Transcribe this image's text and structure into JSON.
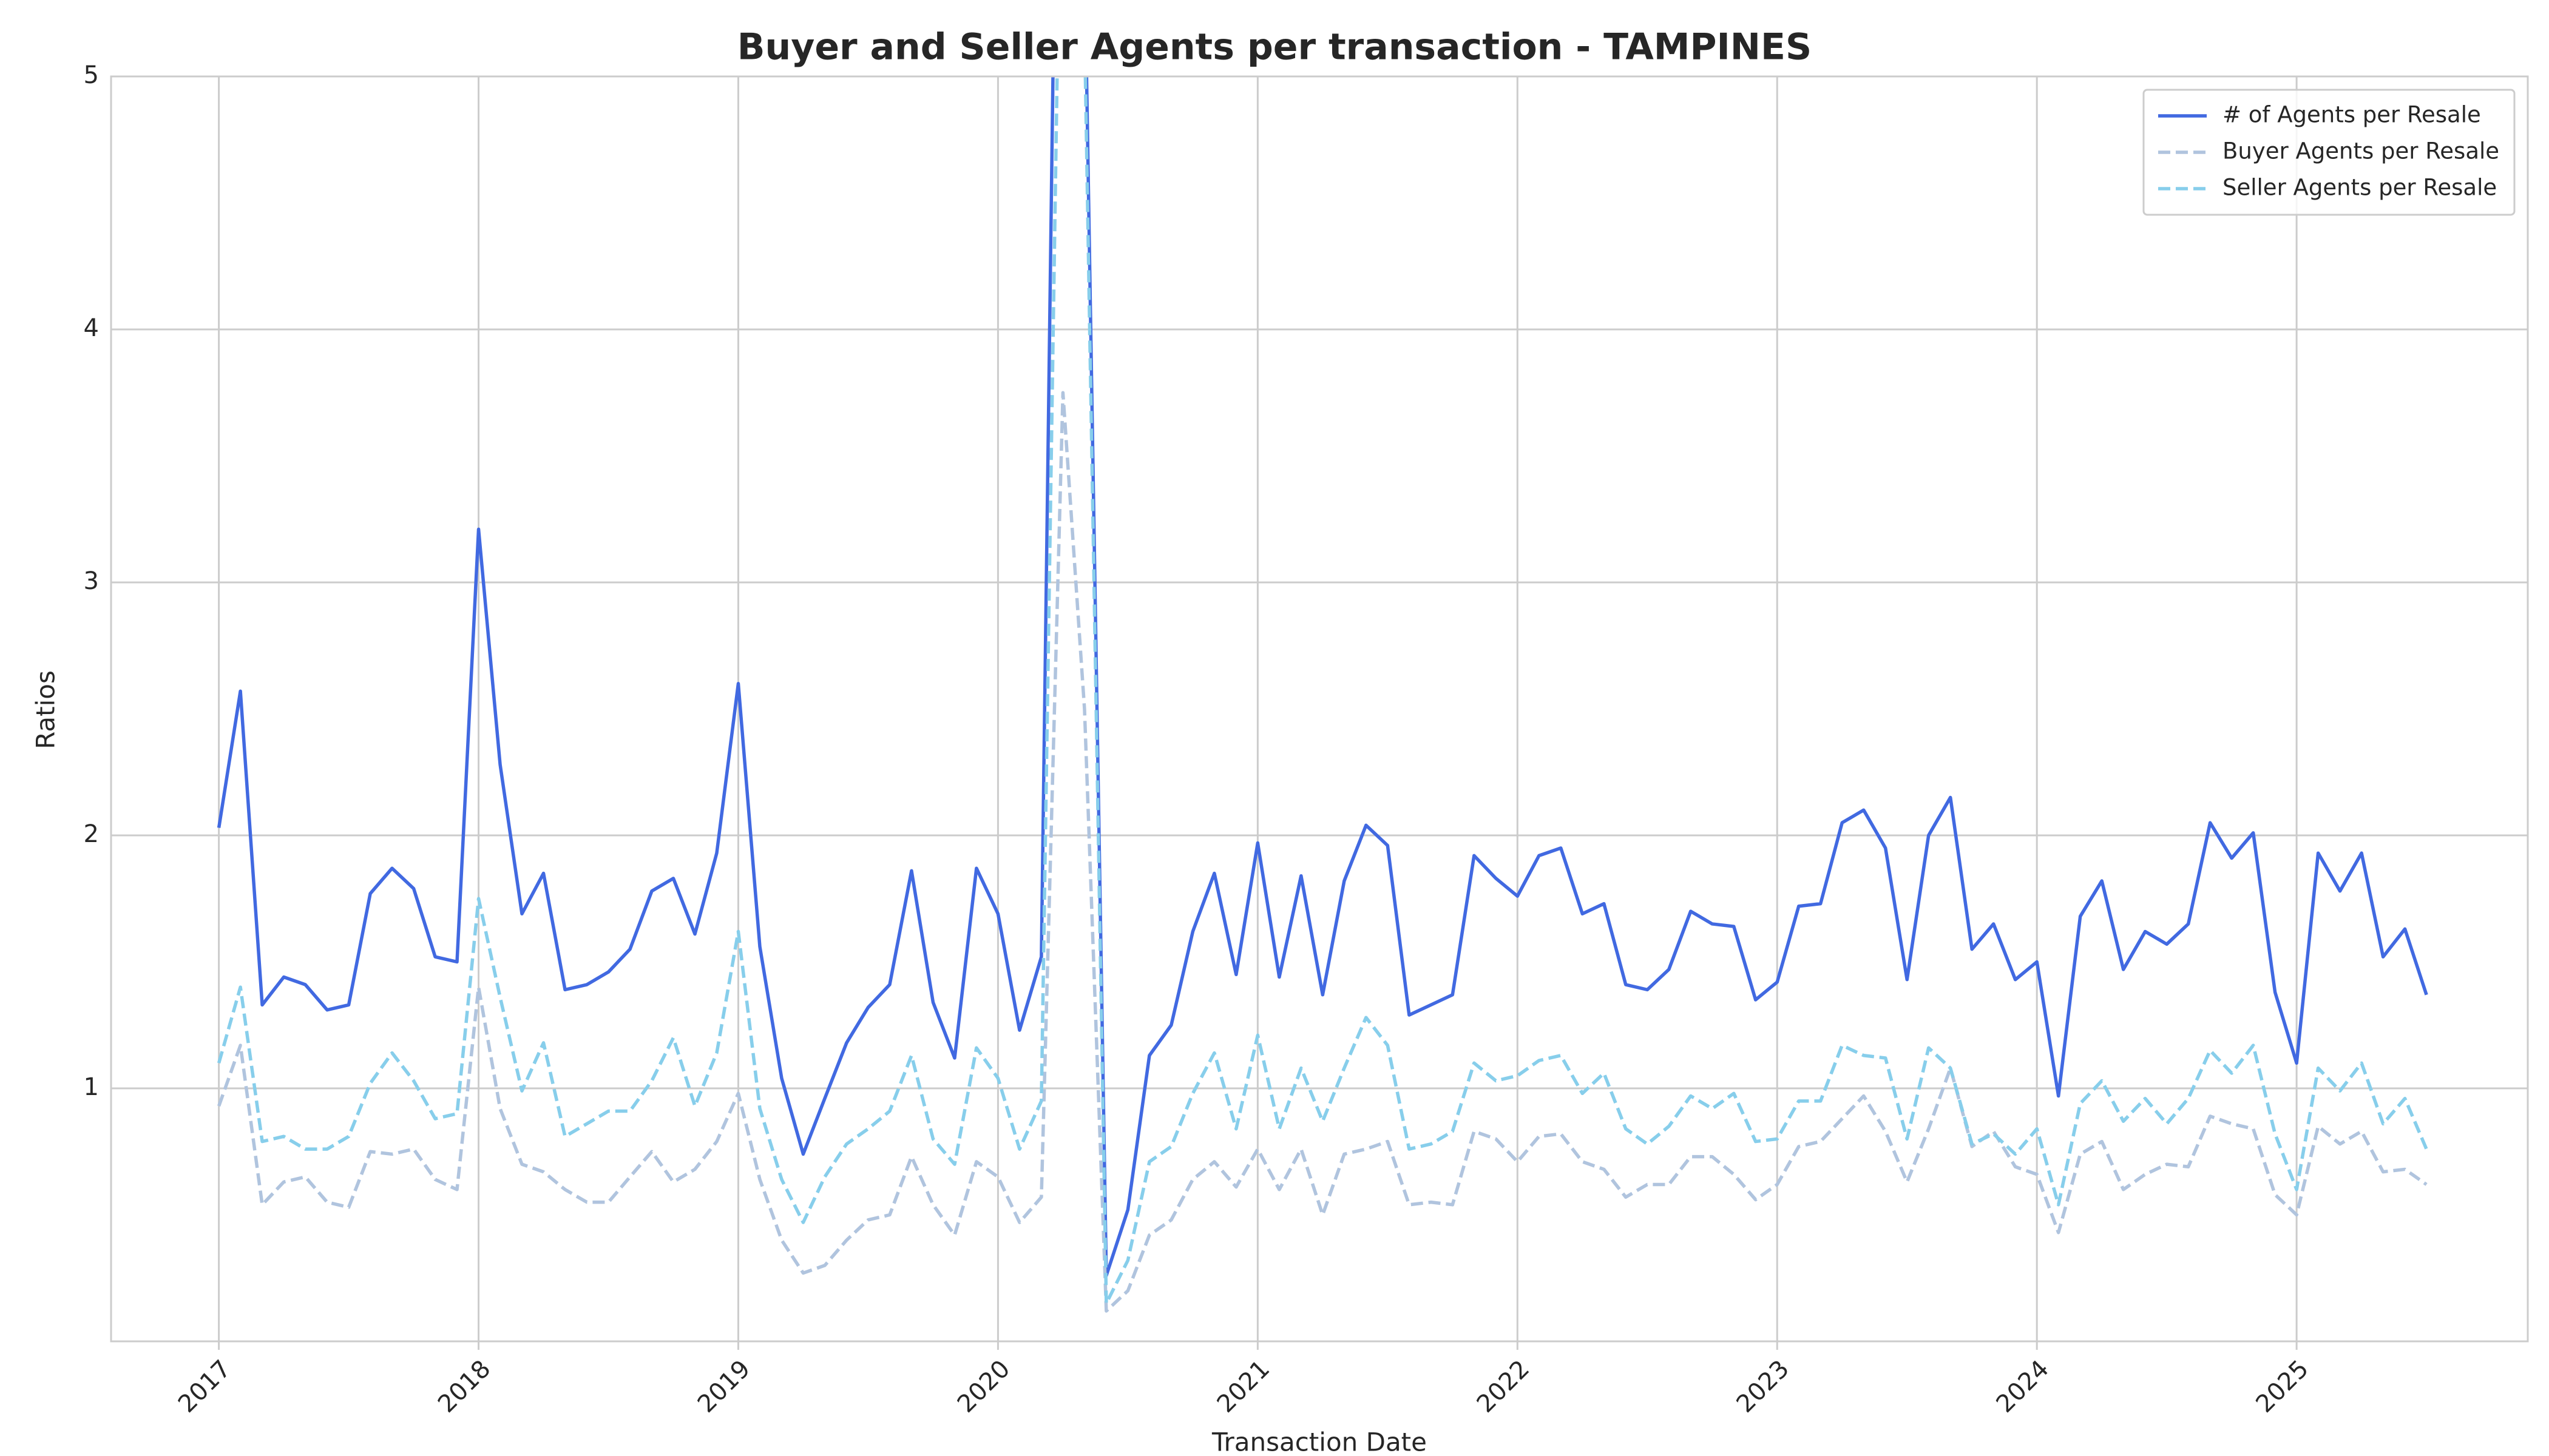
{
  "chart_data": {
    "type": "line",
    "title": "Buyer and Seller Agents per transaction - TAMPINES",
    "x_label": "Transaction Date",
    "y_label": "Ratios",
    "x": [
      2017,
      2017.083,
      2017.167,
      2017.25,
      2017.333,
      2017.417,
      2017.5,
      2017.583,
      2017.667,
      2017.75,
      2017.833,
      2017.917,
      2018,
      2018.083,
      2018.167,
      2018.25,
      2018.333,
      2018.417,
      2018.5,
      2018.583,
      2018.667,
      2018.75,
      2018.833,
      2018.917,
      2019,
      2019.083,
      2019.167,
      2019.25,
      2019.333,
      2019.417,
      2019.5,
      2019.583,
      2019.667,
      2019.75,
      2019.833,
      2019.917,
      2020,
      2020.083,
      2020.167,
      2020.25,
      2020.333,
      2020.417,
      2020.5,
      2020.583,
      2020.667,
      2020.75,
      2020.833,
      2020.917,
      2021,
      2021.083,
      2021.167,
      2021.25,
      2021.333,
      2021.417,
      2021.5,
      2021.583,
      2021.667,
      2021.75,
      2021.833,
      2021.917,
      2022,
      2022.083,
      2022.167,
      2022.25,
      2022.333,
      2022.417,
      2022.5,
      2022.583,
      2022.667,
      2022.75,
      2022.833,
      2022.917,
      2023,
      2023.083,
      2023.167,
      2023.25,
      2023.333,
      2023.417,
      2023.5,
      2023.583,
      2023.667,
      2023.75,
      2023.833,
      2023.917,
      2024,
      2024.083,
      2024.167,
      2024.25,
      2024.333,
      2024.417,
      2024.5,
      2024.583,
      2024.667,
      2024.75,
      2024.833,
      2024.917,
      2025,
      2025.083,
      2025.167,
      2025.25,
      2025.333,
      2025.417,
      2025.5
    ],
    "series": [
      {
        "name": "# of Agents per Resale",
        "color": "#4169e1",
        "linestyle": "solid",
        "values": [
          2.03,
          2.57,
          1.33,
          1.44,
          1.41,
          1.31,
          1.33,
          1.77,
          1.87,
          1.79,
          1.52,
          1.5,
          3.21,
          2.28,
          1.69,
          1.85,
          1.39,
          1.41,
          1.46,
          1.55,
          1.78,
          1.83,
          1.61,
          1.93,
          2.6,
          1.56,
          1.04,
          0.74,
          0.96,
          1.18,
          1.32,
          1.41,
          1.86,
          1.34,
          1.12,
          1.87,
          1.69,
          1.23,
          1.52,
          8,
          5.5,
          0.26,
          0.52,
          1.13,
          1.25,
          1.62,
          1.85,
          1.45,
          1.97,
          1.44,
          1.84,
          1.37,
          1.82,
          2.04,
          1.96,
          1.29,
          1.33,
          1.37,
          1.92,
          1.83,
          1.76,
          1.92,
          1.95,
          1.69,
          1.73,
          1.41,
          1.39,
          1.47,
          1.7,
          1.65,
          1.64,
          1.35,
          1.42,
          1.72,
          1.73,
          2.05,
          2.1,
          1.95,
          1.43,
          2,
          2.15,
          1.55,
          1.65,
          1.43,
          1.5,
          0.97,
          1.68,
          1.82,
          1.47,
          1.62,
          1.57,
          1.65,
          2.05,
          1.91,
          2.01,
          1.38,
          1.1,
          1.93,
          1.78,
          1.93,
          1.52,
          1.63,
          1.37
        ]
      },
      {
        "name": "Buyer Agents per Resale",
        "color": "#b0c4de",
        "linestyle": "dashed",
        "values": [
          0.93,
          1.17,
          0.54,
          0.63,
          0.65,
          0.55,
          0.53,
          0.75,
          0.74,
          0.76,
          0.64,
          0.6,
          1.4,
          0.92,
          0.7,
          0.67,
          0.6,
          0.55,
          0.55,
          0.65,
          0.75,
          0.63,
          0.68,
          0.79,
          0.98,
          0.64,
          0.4,
          0.27,
          0.3,
          0.4,
          0.48,
          0.5,
          0.73,
          0.54,
          0.42,
          0.71,
          0.65,
          0.47,
          0.57,
          3.75,
          2.5,
          0.12,
          0.2,
          0.42,
          0.48,
          0.64,
          0.71,
          0.61,
          0.76,
          0.6,
          0.76,
          0.5,
          0.74,
          0.76,
          0.79,
          0.54,
          0.55,
          0.54,
          0.83,
          0.8,
          0.71,
          0.81,
          0.82,
          0.71,
          0.68,
          0.57,
          0.62,
          0.62,
          0.73,
          0.73,
          0.66,
          0.56,
          0.62,
          0.77,
          0.79,
          0.88,
          0.97,
          0.83,
          0.63,
          0.84,
          1.08,
          0.77,
          0.83,
          0.69,
          0.66,
          0.43,
          0.74,
          0.79,
          0.6,
          0.66,
          0.7,
          0.69,
          0.89,
          0.86,
          0.84,
          0.58,
          0.5,
          0.85,
          0.78,
          0.83,
          0.67,
          0.68,
          0.62
        ]
      },
      {
        "name": "Seller Agents per Resale",
        "color": "#87ceeb",
        "linestyle": "dashed",
        "values": [
          1.1,
          1.4,
          0.79,
          0.81,
          0.76,
          0.76,
          0.81,
          1.02,
          1.14,
          1.03,
          0.88,
          0.9,
          1.75,
          1.36,
          0.99,
          1.18,
          0.81,
          0.86,
          0.91,
          0.91,
          1.03,
          1.2,
          0.93,
          1.14,
          1.62,
          0.92,
          0.64,
          0.47,
          0.65,
          0.78,
          0.84,
          0.91,
          1.13,
          0.8,
          0.7,
          1.16,
          1.04,
          0.76,
          0.95,
          6.5,
          5.2,
          0.15,
          0.32,
          0.71,
          0.77,
          0.98,
          1.14,
          0.84,
          1.21,
          0.84,
          1.08,
          0.87,
          1.08,
          1.28,
          1.17,
          0.76,
          0.78,
          0.83,
          1.1,
          1.03,
          1.05,
          1.11,
          1.13,
          0.98,
          1.06,
          0.84,
          0.78,
          0.85,
          0.97,
          0.92,
          0.98,
          0.79,
          0.8,
          0.95,
          0.95,
          1.17,
          1.13,
          1.12,
          0.8,
          1.16,
          1.08,
          0.78,
          0.82,
          0.74,
          0.84,
          0.54,
          0.94,
          1.03,
          0.87,
          0.96,
          0.86,
          0.96,
          1.15,
          1.06,
          1.17,
          0.82,
          0.6,
          1.08,
          0.99,
          1.1,
          0.86,
          0.96,
          0.76
        ]
      }
    ],
    "xlim": [
      2016.585,
      2025.89
    ],
    "xticks": [
      2017,
      2018,
      2019,
      2020,
      2021,
      2022,
      2023,
      2024,
      2025
    ],
    "ylim": [
      0,
      5
    ],
    "yticks": [
      1,
      2,
      3,
      4,
      5
    ],
    "grid": true,
    "legend": "upper right"
  }
}
